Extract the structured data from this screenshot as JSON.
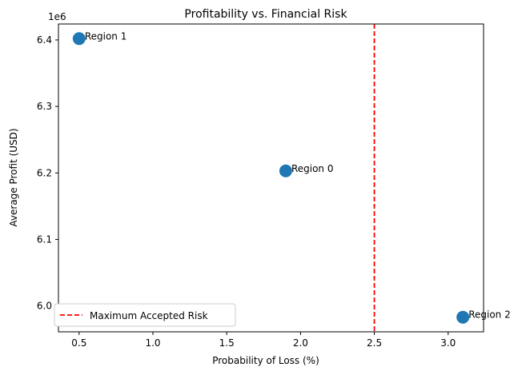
{
  "chart_data": {
    "type": "scatter",
    "title": "Profitability vs. Financial Risk",
    "xlabel": "Probability of Loss (%)",
    "ylabel": "Average Profit (USD)",
    "y_offset_label": "1e6",
    "xlim": [
      0.36,
      3.24
    ],
    "ylim": [
      5.961,
      6.424
    ],
    "xticks": [
      0.5,
      1.0,
      1.5,
      2.0,
      2.5,
      3.0
    ],
    "xtick_labels": [
      "0.5",
      "1.0",
      "1.5",
      "2.0",
      "2.5",
      "3.0"
    ],
    "yticks": [
      6.0,
      6.1,
      6.2,
      6.3,
      6.4
    ],
    "ytick_labels": [
      "6.0",
      "6.1",
      "6.2",
      "6.3",
      "6.4"
    ],
    "points": [
      {
        "label": "Region 0",
        "x": 1.9,
        "y": 6.203
      },
      {
        "label": "Region 1",
        "x": 0.5,
        "y": 6.402
      },
      {
        "label": "Region 2",
        "x": 3.1,
        "y": 5.983
      }
    ],
    "point_color": "#1f77b4",
    "reference_line": {
      "orientation": "vertical",
      "x": 2.5,
      "label": "Maximum Accepted Risk",
      "color": "#ff0000",
      "style": "dashed"
    },
    "legend": {
      "position": "bottom-left",
      "entries": [
        "Maximum Accepted Risk"
      ]
    },
    "grid": false
  }
}
